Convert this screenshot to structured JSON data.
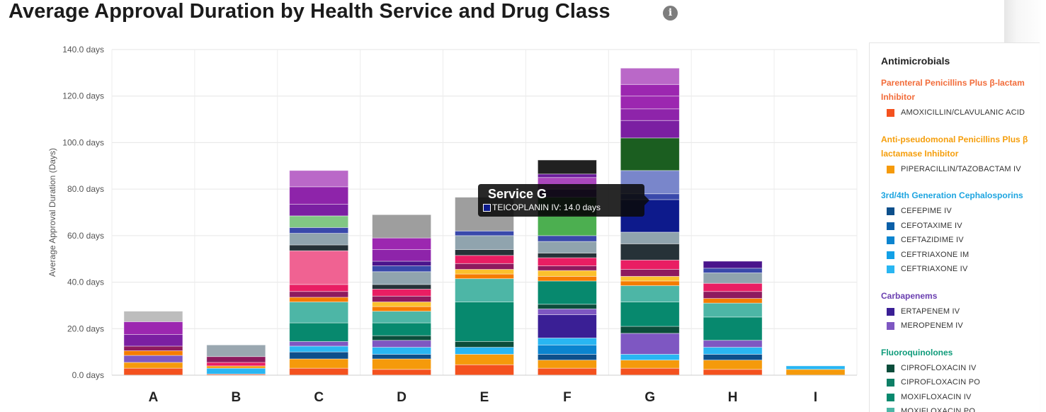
{
  "title": "Average Approval Duration by Health Service and Drug Class",
  "info_icon": "info-icon",
  "tooltip": {
    "title": "Service G",
    "line": "TEICOPLANIN IV: 14.0 days",
    "color": "#0d1a8c"
  },
  "legend": {
    "title": "Antimicrobials",
    "groups": [
      {
        "label": "Parenteral Penicillins Plus β-lactam Inhibitor",
        "color": "#f26c3a",
        "items": [
          {
            "label": "AMOXICILLIN/CLAVULANIC ACID",
            "color": "#f4511e"
          }
        ]
      },
      {
        "label": "Anti-pseudomonal Penicillins Plus β lactamase Inhibitor",
        "color": "#f59e0b",
        "items": [
          {
            "label": "PIPERACILLIN/TAZOBACTAM IV",
            "color": "#f59a0b"
          }
        ]
      },
      {
        "label": "3rd/4th Generation Cephalosporins",
        "color": "#1ea5e0",
        "items": [
          {
            "label": "CEFEPIME IV",
            "color": "#0d4f8b"
          },
          {
            "label": "CEFOTAXIME IV",
            "color": "#0a5fa8"
          },
          {
            "label": "CEFTAZIDIME IV",
            "color": "#0b84cf"
          },
          {
            "label": "CEFTRIAXONE IM",
            "color": "#12a0e6"
          },
          {
            "label": "CEFTRIAXONE IV",
            "color": "#29b6f2"
          }
        ]
      },
      {
        "label": "Carbapenems",
        "color": "#6a3fb0",
        "items": [
          {
            "label": "ERTAPENEM IV",
            "color": "#3a1f95"
          },
          {
            "label": "MEROPENEM IV",
            "color": "#7e57c2"
          }
        ]
      },
      {
        "label": "Fluoroquinolones",
        "color": "#0e9b7a",
        "items": [
          {
            "label": "CIPROFLOXACIN IV",
            "color": "#0b4d3b"
          },
          {
            "label": "CIPROFLOXACIN PO",
            "color": "#0e7f66"
          },
          {
            "label": "MOXIFLOXACIN IV",
            "color": "#07896e"
          },
          {
            "label": "MOXIFLOXACIN PO",
            "color": "#4db6a6"
          }
        ]
      }
    ]
  },
  "chart_data": {
    "type": "bar",
    "stacked": true,
    "title": "Average Approval Duration by Health Service and Drug Class",
    "xlabel": "",
    "ylabel": "Average Approval Duration (Days)",
    "ylim": [
      0,
      140
    ],
    "yticks": [
      "0.0 days",
      "20.0 days",
      "40.0 days",
      "60.0 days",
      "80.0 days",
      "100.0 days",
      "120.0 days",
      "140.0 days"
    ],
    "grid": true,
    "legend_position": "right",
    "categories": [
      "A",
      "B",
      "C",
      "D",
      "E",
      "F",
      "G",
      "H",
      "I"
    ],
    "stacks": [
      [
        {
          "v": 3.0,
          "c": "#f4511e"
        },
        {
          "v": 2.5,
          "c": "#f59a0b"
        },
        {
          "v": 3.0,
          "c": "#7e57c2"
        },
        {
          "v": 2.0,
          "c": "#f57c00"
        },
        {
          "v": 2.0,
          "c": "#8e1a5e"
        },
        {
          "v": 5.0,
          "c": "#7b1fa2"
        },
        {
          "v": 5.5,
          "c": "#9c27b0"
        },
        {
          "v": 4.5,
          "c": "#bdbdbd"
        }
      ],
      [
        {
          "v": 0.5,
          "c": "#f4511e"
        },
        {
          "v": 2.5,
          "c": "#29b6f2"
        },
        {
          "v": 1.0,
          "c": "#f59a0b"
        },
        {
          "v": 1.5,
          "c": "#e91e63"
        },
        {
          "v": 2.5,
          "c": "#8e1a5e"
        },
        {
          "v": 5.0,
          "c": "#9aa7b0"
        }
      ],
      [
        {
          "v": 3.0,
          "c": "#f4511e"
        },
        {
          "v": 4.0,
          "c": "#f59a0b"
        },
        {
          "v": 3.0,
          "c": "#0d4f8b"
        },
        {
          "v": 2.5,
          "c": "#29b6f2"
        },
        {
          "v": 2.0,
          "c": "#7e57c2"
        },
        {
          "v": 8.0,
          "c": "#07896e"
        },
        {
          "v": 9.0,
          "c": "#4db6a6"
        },
        {
          "v": 2.0,
          "c": "#f57c00"
        },
        {
          "v": 2.5,
          "c": "#8e1a5e"
        },
        {
          "v": 3.0,
          "c": "#e91e63"
        },
        {
          "v": 14.5,
          "c": "#f06292"
        },
        {
          "v": 2.5,
          "c": "#263238"
        },
        {
          "v": 5.0,
          "c": "#90a4ae"
        },
        {
          "v": 2.5,
          "c": "#3949ab"
        },
        {
          "v": 5.0,
          "c": "#81c784"
        },
        {
          "v": 5.0,
          "c": "#7b1fa2"
        },
        {
          "v": 7.5,
          "c": "#8e24aa"
        },
        {
          "v": 7.0,
          "c": "#ba68c8"
        }
      ],
      [
        {
          "v": 2.5,
          "c": "#f4511e"
        },
        {
          "v": 4.5,
          "c": "#f59a0b"
        },
        {
          "v": 2.0,
          "c": "#0d4f8b"
        },
        {
          "v": 3.0,
          "c": "#29b6f2"
        },
        {
          "v": 3.0,
          "c": "#7e57c2"
        },
        {
          "v": 2.0,
          "c": "#0b4d3b"
        },
        {
          "v": 5.5,
          "c": "#07896e"
        },
        {
          "v": 5.0,
          "c": "#4db6a6"
        },
        {
          "v": 2.0,
          "c": "#f57c00"
        },
        {
          "v": 2.0,
          "c": "#fbc02d"
        },
        {
          "v": 2.5,
          "c": "#8e1a5e"
        },
        {
          "v": 3.0,
          "c": "#e91e63"
        },
        {
          "v": 2.0,
          "c": "#263238"
        },
        {
          "v": 5.5,
          "c": "#90a4ae"
        },
        {
          "v": 2.5,
          "c": "#3949ab"
        },
        {
          "v": 2.0,
          "c": "#4a148c"
        },
        {
          "v": 5.0,
          "c": "#8e24aa"
        },
        {
          "v": 5.0,
          "c": "#9c27b0"
        },
        {
          "v": 10.0,
          "c": "#9e9e9e"
        }
      ],
      [
        {
          "v": 4.5,
          "c": "#f4511e"
        },
        {
          "v": 4.5,
          "c": "#f59a0b"
        },
        {
          "v": 3.0,
          "c": "#29b6f2"
        },
        {
          "v": 2.5,
          "c": "#0b4d3b"
        },
        {
          "v": 17.0,
          "c": "#07896e"
        },
        {
          "v": 10.0,
          "c": "#4db6a6"
        },
        {
          "v": 2.0,
          "c": "#f57c00"
        },
        {
          "v": 2.0,
          "c": "#fbc02d"
        },
        {
          "v": 2.5,
          "c": "#8e1a5e"
        },
        {
          "v": 3.5,
          "c": "#e91e63"
        },
        {
          "v": 2.5,
          "c": "#263238"
        },
        {
          "v": 6.0,
          "c": "#90a4ae"
        },
        {
          "v": 2.0,
          "c": "#3949ab"
        },
        {
          "v": 14.5,
          "c": "#9e9e9e"
        }
      ],
      [
        {
          "v": 3.0,
          "c": "#f4511e"
        },
        {
          "v": 3.5,
          "c": "#f59a0b"
        },
        {
          "v": 2.5,
          "c": "#0d4f8b"
        },
        {
          "v": 4.0,
          "c": "#0b84cf"
        },
        {
          "v": 3.0,
          "c": "#29b6f2"
        },
        {
          "v": 10.0,
          "c": "#3a1f95"
        },
        {
          "v": 2.5,
          "c": "#7e57c2"
        },
        {
          "v": 2.0,
          "c": "#0b4d3b"
        },
        {
          "v": 10.0,
          "c": "#07896e"
        },
        {
          "v": 2.0,
          "c": "#f57c00"
        },
        {
          "v": 2.5,
          "c": "#fbc02d"
        },
        {
          "v": 2.0,
          "c": "#8e1a5e"
        },
        {
          "v": 3.5,
          "c": "#e91e63"
        },
        {
          "v": 2.0,
          "c": "#263238"
        },
        {
          "v": 5.0,
          "c": "#90a4ae"
        },
        {
          "v": 2.5,
          "c": "#3949ab"
        },
        {
          "v": 8.5,
          "c": "#4caf50"
        },
        {
          "v": 8.0,
          "c": "#1b5e20"
        },
        {
          "v": 3.5,
          "c": "#4a148c"
        },
        {
          "v": 5.0,
          "c": "#ab47bc"
        },
        {
          "v": 1.5,
          "c": "#6a1b9a"
        },
        {
          "v": 6.0,
          "c": "#212121"
        }
      ],
      [
        {
          "v": 3.0,
          "c": "#f4511e"
        },
        {
          "v": 3.5,
          "c": "#f59a0b"
        },
        {
          "v": 2.5,
          "c": "#29b6f2"
        },
        {
          "v": 9.0,
          "c": "#7e57c2"
        },
        {
          "v": 3.0,
          "c": "#0b4d3b"
        },
        {
          "v": 10.5,
          "c": "#07896e"
        },
        {
          "v": 7.0,
          "c": "#4db6a6"
        },
        {
          "v": 2.0,
          "c": "#f57c00"
        },
        {
          "v": 2.0,
          "c": "#fbc02d"
        },
        {
          "v": 3.0,
          "c": "#8e1a5e"
        },
        {
          "v": 4.0,
          "c": "#e91e63"
        },
        {
          "v": 7.0,
          "c": "#263238"
        },
        {
          "v": 5.0,
          "c": "#90a4ae"
        },
        {
          "v": 14.0,
          "c": "#0d1a8c"
        },
        {
          "v": 2.5,
          "c": "#3949ab"
        },
        {
          "v": 10.0,
          "c": "#7986cb"
        },
        {
          "v": 14.0,
          "c": "#1b5e20"
        },
        {
          "v": 7.5,
          "c": "#7b1fa2"
        },
        {
          "v": 5.0,
          "c": "#8e24aa"
        },
        {
          "v": 5.5,
          "c": "#9c27b0"
        },
        {
          "v": 5.0,
          "c": "#9c27b0"
        },
        {
          "v": 7.0,
          "c": "#ba68c8"
        }
      ],
      [
        {
          "v": 2.5,
          "c": "#f4511e"
        },
        {
          "v": 4.0,
          "c": "#f59a0b"
        },
        {
          "v": 2.5,
          "c": "#0d4f8b"
        },
        {
          "v": 3.0,
          "c": "#29b6f2"
        },
        {
          "v": 3.0,
          "c": "#7e57c2"
        },
        {
          "v": 10.0,
          "c": "#07896e"
        },
        {
          "v": 6.0,
          "c": "#4db6a6"
        },
        {
          "v": 2.0,
          "c": "#f57c00"
        },
        {
          "v": 3.0,
          "c": "#8e1a5e"
        },
        {
          "v": 3.5,
          "c": "#e91e63"
        },
        {
          "v": 4.5,
          "c": "#90a4ae"
        },
        {
          "v": 2.0,
          "c": "#3949ab"
        },
        {
          "v": 3.0,
          "c": "#4a148c"
        }
      ],
      [
        {
          "v": 2.5,
          "c": "#f59a0b"
        },
        {
          "v": 1.5,
          "c": "#29b6f2"
        }
      ]
    ]
  }
}
